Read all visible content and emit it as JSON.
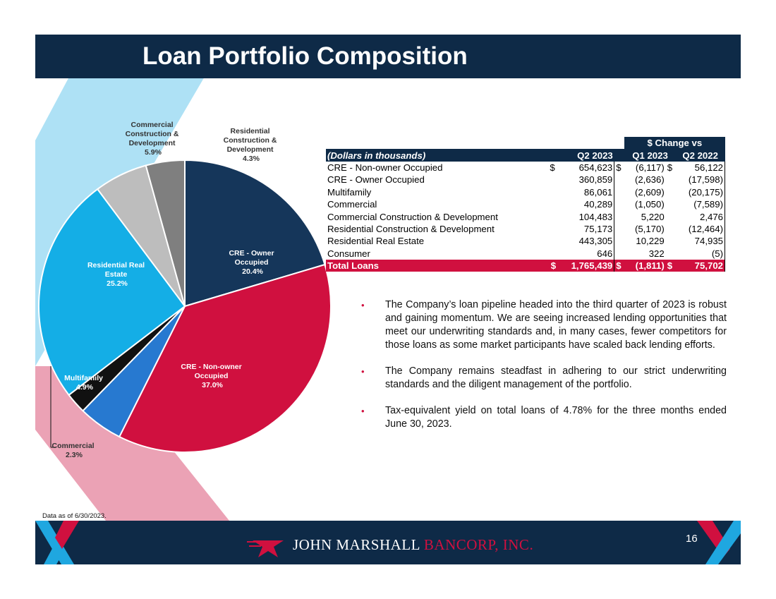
{
  "title": "Loan Portfolio Composition",
  "chart_data": {
    "type": "pie",
    "slices": [
      {
        "name": "CRE - Owner Occupied",
        "value": 20.4,
        "label": "20.4%",
        "color": "#15365a"
      },
      {
        "name": "CRE - Non-owner Occupied",
        "value": 37.0,
        "label": "37.0%",
        "color": "#d0103f"
      },
      {
        "name": "Multifamily",
        "value": 4.9,
        "label": "4.9%",
        "color": "#2779d0"
      },
      {
        "name": "Commercial",
        "value": 2.3,
        "label": "2.3%",
        "color": "#111111"
      },
      {
        "name": "Residential Real Estate",
        "value": 25.2,
        "label": "25.2%",
        "color": "#14aee6"
      },
      {
        "name": "Commercial Construction & Development",
        "value": 5.9,
        "label": "5.9%",
        "color": "#bdbdbd"
      },
      {
        "name": "Residential Construction & Development",
        "value": 4.3,
        "label": "4.3%",
        "color": "#7f7f7f"
      }
    ]
  },
  "table": {
    "group_header": "$ Change vs",
    "col_label": "(Dollars in thousands)",
    "cols": [
      "Q2 2023",
      "Q1 2023",
      "Q2 2022"
    ],
    "rows": [
      {
        "label": "CRE - Non-owner Occupied",
        "c1_sym": "$",
        "q2_2023": "654,623",
        "c2_sym": "$",
        "q1_2023": "(6,117)",
        "c3_sym": "$",
        "q2_2022": "56,122"
      },
      {
        "label": "CRE - Owner Occupied",
        "c1_sym": "",
        "q2_2023": "360,859",
        "c2_sym": "",
        "q1_2023": "(2,636)",
        "c3_sym": "",
        "q2_2022": "(17,598)"
      },
      {
        "label": "Multifamily",
        "c1_sym": "",
        "q2_2023": "86,061",
        "c2_sym": "",
        "q1_2023": "(2,609)",
        "c3_sym": "",
        "q2_2022": "(20,175)"
      },
      {
        "label": "Commercial",
        "c1_sym": "",
        "q2_2023": "40,289",
        "c2_sym": "",
        "q1_2023": "(1,050)",
        "c3_sym": "",
        "q2_2022": "(7,589)"
      },
      {
        "label": "Commercial Construction & Development",
        "c1_sym": "",
        "q2_2023": "104,483",
        "c2_sym": "",
        "q1_2023": "5,220",
        "c3_sym": "",
        "q2_2022": "2,476"
      },
      {
        "label": "Residential Construction & Development",
        "c1_sym": "",
        "q2_2023": "75,173",
        "c2_sym": "",
        "q1_2023": "(5,170)",
        "c3_sym": "",
        "q2_2022": "(12,464)"
      },
      {
        "label": "Residential Real Estate",
        "c1_sym": "",
        "q2_2023": "443,305",
        "c2_sym": "",
        "q1_2023": "10,229",
        "c3_sym": "",
        "q2_2022": "74,935"
      },
      {
        "label": "Consumer",
        "c1_sym": "",
        "q2_2023": "646",
        "c2_sym": "",
        "q1_2023": "322",
        "c3_sym": "",
        "q2_2022": "(5)"
      }
    ],
    "total": {
      "label": "Total Loans",
      "c1_sym": "$",
      "q2_2023": "1,765,439",
      "c2_sym": "$",
      "q1_2023": "(1,811)",
      "c3_sym": "$",
      "q2_2022": "75,702"
    }
  },
  "bullets": [
    "The Company’s loan pipeline headed into the third quarter of 2023 is robust and gaining momentum. We are seeing increased lending opportunities that meet our underwriting standards and, in many cases, fewer competitors for those loans as some market participants have scaled back lending efforts.",
    "The Company remains steadfast in adhering to our strict underwriting standards and the diligent management of the portfolio.",
    "Tax-equivalent yield on total loans of 4.78% for the three months ended June 30, 2023."
  ],
  "footnote": "Data as of 6/30/2023.",
  "footer": {
    "logo_part1": "JOHN MARSHALL",
    "logo_part2": "BANCORP, INC.",
    "page_number": "16"
  },
  "colors": {
    "navy": "#0e2a47",
    "red": "#d0103f",
    "light_blue": "#aee1f5",
    "pink": "#eba2b5"
  }
}
